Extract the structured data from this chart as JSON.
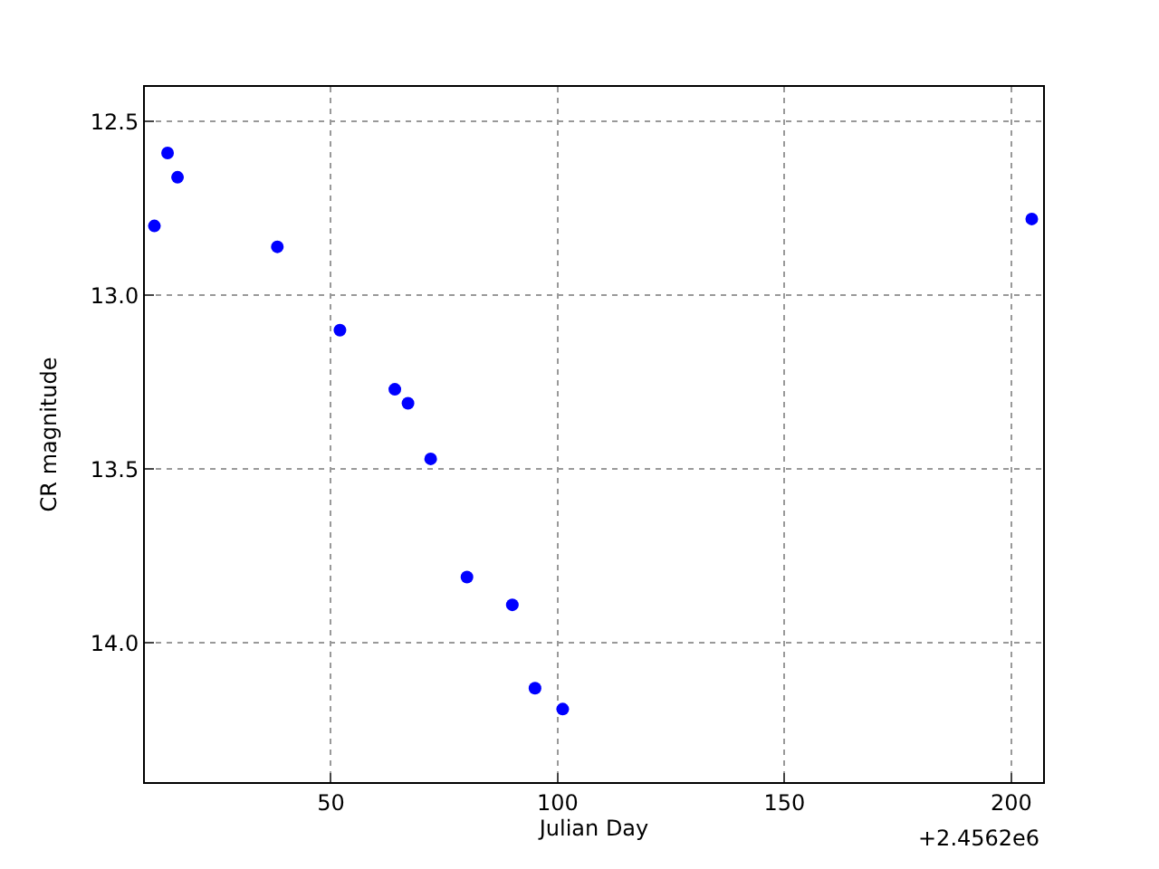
{
  "chart_data": {
    "type": "scatter",
    "xlabel": "Julian Day",
    "ylabel": "CR magnitude",
    "x": [
      11.1,
      14.0,
      16.2,
      38.2,
      52.0,
      64.1,
      67.0,
      72.0,
      80.0,
      90.0,
      95.0,
      101.1,
      204.5
    ],
    "series": [
      {
        "color": "#0000ff",
        "values": [
          12.8,
          12.59,
          12.66,
          12.86,
          13.1,
          13.27,
          13.31,
          13.47,
          13.81,
          13.89,
          14.13,
          14.19,
          12.78
        ]
      }
    ],
    "xlim": [
      9,
      207
    ],
    "xticks": [
      50,
      100,
      150,
      200
    ],
    "ylim": [
      14.4,
      12.4
    ],
    "yticks": [
      {
        "value": 12.5,
        "label": "12.5"
      },
      {
        "value": 13.0,
        "label": "13.0"
      },
      {
        "value": 13.5,
        "label": "13.5"
      },
      {
        "value": 14.0,
        "label": "14.0"
      }
    ],
    "annotations": [
      "+2.4562e6"
    ],
    "grid": true,
    "marker": "circle"
  }
}
